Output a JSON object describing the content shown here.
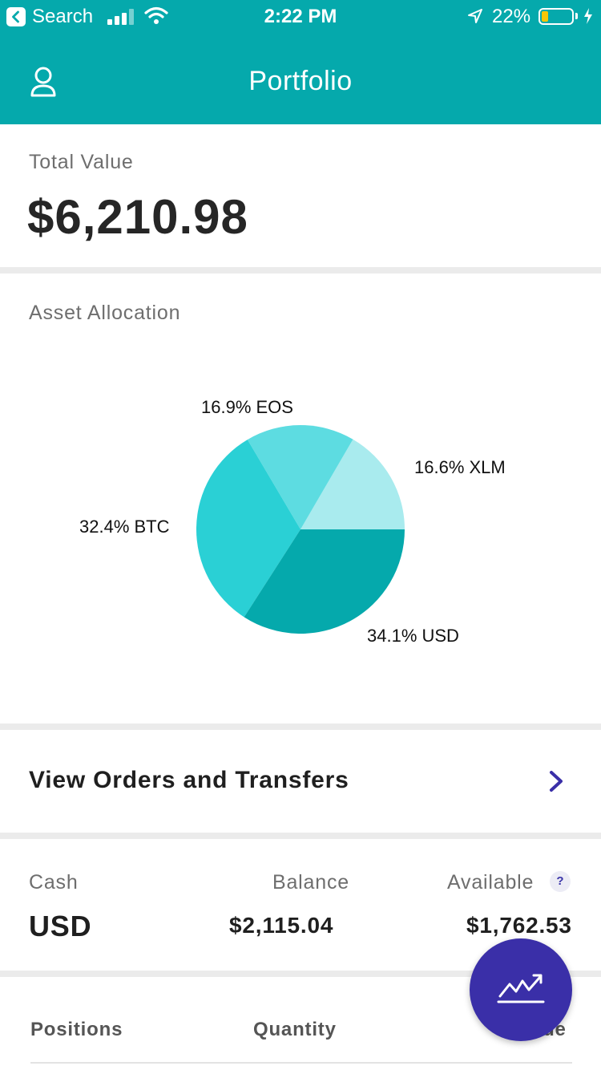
{
  "status_bar": {
    "back_label": "Search",
    "time": "2:22 PM",
    "battery_percent": "22%",
    "battery_level": 0.22
  },
  "header": {
    "title": "Portfolio",
    "left_icon": "user-icon"
  },
  "total": {
    "label": "Total Value",
    "value": "$6,210.98"
  },
  "allocation": {
    "label": "Asset Allocation",
    "chart_data": {
      "type": "pie",
      "slices": [
        {
          "name": "XLM",
          "value": 16.6,
          "label": "16.6% XLM",
          "color": "#a9ebee"
        },
        {
          "name": "EOS",
          "value": 16.9,
          "label": "16.9% EOS",
          "color": "#5ddce1"
        },
        {
          "name": "BTC",
          "value": 32.4,
          "label": "32.4% BTC",
          "color": "#2ad0d5"
        },
        {
          "name": "USD",
          "value": 34.1,
          "label": "34.1% USD",
          "color": "#05a9ac"
        }
      ]
    }
  },
  "orders": {
    "label": "View Orders and Transfers"
  },
  "cash": {
    "headers": {
      "cash": "Cash",
      "balance": "Balance",
      "available": "Available"
    },
    "row": {
      "currency": "USD",
      "balance": "$2,115.04",
      "available": "$1,762.53"
    },
    "help_label": "?"
  },
  "positions": {
    "headers": {
      "positions": "Positions",
      "quantity": "Quantity",
      "value": "Value"
    }
  },
  "fab": {
    "icon": "trend-chart-icon"
  },
  "colors": {
    "primary": "#05a9ac",
    "accent": "#3a2fa8",
    "divider": "#ebebeb"
  }
}
